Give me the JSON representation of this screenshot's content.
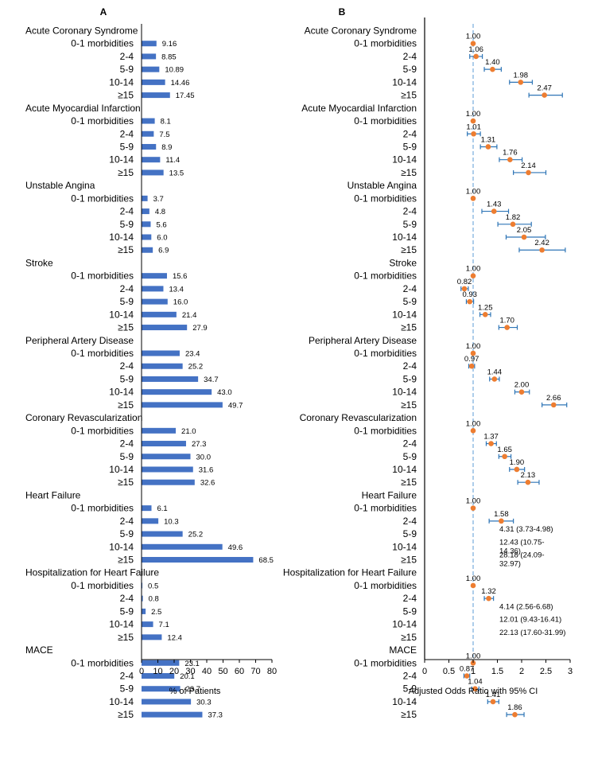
{
  "chart_data": [
    {
      "panel": "A",
      "type": "bar",
      "orientation": "horizontal",
      "xlabel": "% of Patients",
      "xlim": [
        0,
        80
      ],
      "xticks": [
        0,
        10,
        20,
        30,
        40,
        50,
        60,
        70,
        80
      ],
      "bar_color": "#4472C4",
      "groups": [
        {
          "name": "Acute Coronary Syndrome",
          "categories": [
            "0-1 morbidities",
            "2-4",
            "5-9",
            "10-14",
            "≥15"
          ],
          "values": [
            9.16,
            8.85,
            10.89,
            14.46,
            17.45
          ],
          "labels": [
            "9.16",
            "8.85",
            "10.89",
            "14.46",
            "17.45"
          ]
        },
        {
          "name": "Acute Myocardial Infarction",
          "categories": [
            "0-1 morbidities",
            "2-4",
            "5-9",
            "10-14",
            "≥15"
          ],
          "values": [
            8.1,
            7.5,
            8.9,
            11.4,
            13.5
          ],
          "labels": [
            "8.1",
            "7.5",
            "8.9",
            "11.4",
            "13.5"
          ]
        },
        {
          "name": "Unstable Angina",
          "categories": [
            "0-1 morbidities",
            "2-4",
            "5-9",
            "10-14",
            "≥15"
          ],
          "values": [
            3.7,
            4.8,
            5.6,
            6.0,
            6.9
          ],
          "labels": [
            "3.7",
            "4.8",
            "5.6",
            "6.0",
            "6.9"
          ]
        },
        {
          "name": "Stroke",
          "categories": [
            "0-1 morbidities",
            "2-4",
            "5-9",
            "10-14",
            "≥15"
          ],
          "values": [
            15.6,
            13.4,
            16.0,
            21.4,
            27.9
          ],
          "labels": [
            "15.6",
            "13.4",
            "16.0",
            "21.4",
            "27.9"
          ]
        },
        {
          "name": "Peripheral Artery Disease",
          "categories": [
            "0-1 morbidities",
            "2-4",
            "5-9",
            "10-14",
            "≥15"
          ],
          "values": [
            23.4,
            25.2,
            34.7,
            43.0,
            49.7
          ],
          "labels": [
            "23.4",
            "25.2",
            "34.7",
            "43.0",
            "49.7"
          ]
        },
        {
          "name": "Coronary Revascularization",
          "categories": [
            "0-1 morbidities",
            "2-4",
            "5-9",
            "10-14",
            "≥15"
          ],
          "values": [
            21.0,
            27.3,
            30.0,
            31.6,
            32.6
          ],
          "labels": [
            "21.0",
            "27.3",
            "30.0",
            "31.6",
            "32.6"
          ]
        },
        {
          "name": "Heart Failure",
          "categories": [
            "0-1 morbidities",
            "2-4",
            "5-9",
            "10-14",
            "≥15"
          ],
          "values": [
            6.1,
            10.3,
            25.2,
            49.6,
            68.5
          ],
          "labels": [
            "6.1",
            "10.3",
            "25.2",
            "49.6",
            "68.5"
          ]
        },
        {
          "name": "Hospitalization for Heart Failure",
          "categories": [
            "0-1 morbidities",
            "2-4",
            "5-9",
            "10-14",
            "≥15"
          ],
          "values": [
            0.5,
            0.8,
            2.5,
            7.1,
            12.4
          ],
          "labels": [
            "0.5",
            "0.8",
            "2.5",
            "7.1",
            "12.4"
          ]
        },
        {
          "name": "MACE",
          "categories": [
            "0-1 morbidities",
            "2-4",
            "5-9",
            "10-14",
            "≥15"
          ],
          "values": [
            23.1,
            20.1,
            23.7,
            30.3,
            37.3
          ],
          "labels": [
            "23.1",
            "20.1",
            "23.7",
            "30.3",
            "37.3"
          ]
        }
      ]
    },
    {
      "panel": "B",
      "type": "scatter",
      "subtype": "forest",
      "xlabel": "Adjusted Odds Ratio with 95% CI",
      "xlim": [
        0,
        3
      ],
      "xticks": [
        0,
        0.5,
        1,
        1.5,
        2,
        2.5,
        3
      ],
      "xtick_labels": [
        "0",
        "0.5",
        "1",
        "1.5",
        "2",
        "2.5",
        "3"
      ],
      "reference_line": 1,
      "point_color": "#ED7D31",
      "error_color": "#2E75B6",
      "ref_color": "#5B9BD5",
      "groups": [
        {
          "name": "Acute Coronary Syndrome",
          "points": [
            {
              "or": 1.0,
              "label": "1.00",
              "lo": 1.0,
              "hi": 1.0
            },
            {
              "or": 1.06,
              "label": "1.06",
              "lo": 0.93,
              "hi": 1.19
            },
            {
              "or": 1.4,
              "label": "1.40",
              "lo": 1.23,
              "hi": 1.58
            },
            {
              "or": 1.98,
              "label": "1.98",
              "lo": 1.75,
              "hi": 2.22
            },
            {
              "or": 2.47,
              "label": "2.47",
              "lo": 2.15,
              "hi": 2.84
            }
          ]
        },
        {
          "name": "Acute Myocardial Infarction",
          "points": [
            {
              "or": 1.0,
              "label": "1.00",
              "lo": 1.0,
              "hi": 1.0
            },
            {
              "or": 1.01,
              "label": "1.01",
              "lo": 0.88,
              "hi": 1.15
            },
            {
              "or": 1.31,
              "label": "1.31",
              "lo": 1.15,
              "hi": 1.49
            },
            {
              "or": 1.76,
              "label": "1.76",
              "lo": 1.54,
              "hi": 2.01
            },
            {
              "or": 2.14,
              "label": "2.14",
              "lo": 1.83,
              "hi": 2.5
            }
          ]
        },
        {
          "name": "Unstable Angina",
          "points": [
            {
              "or": 1.0,
              "label": "1.00",
              "lo": 1.0,
              "hi": 1.0
            },
            {
              "or": 1.43,
              "label": "1.43",
              "lo": 1.18,
              "hi": 1.73
            },
            {
              "or": 1.82,
              "label": "1.82",
              "lo": 1.51,
              "hi": 2.2
            },
            {
              "or": 2.05,
              "label": "2.05",
              "lo": 1.68,
              "hi": 2.49
            },
            {
              "or": 2.42,
              "label": "2.42",
              "lo": 1.95,
              "hi": 2.9
            }
          ]
        },
        {
          "name": "Stroke",
          "points": [
            {
              "or": 1.0,
              "label": "1.00",
              "lo": 1.0,
              "hi": 1.0
            },
            {
              "or": 0.82,
              "label": "0.82",
              "lo": 0.75,
              "hi": 0.9
            },
            {
              "or": 0.93,
              "label": "0.93",
              "lo": 0.86,
              "hi": 1.01
            },
            {
              "or": 1.25,
              "label": "1.25",
              "lo": 1.14,
              "hi": 1.36
            },
            {
              "or": 1.7,
              "label": "1.70",
              "lo": 1.53,
              "hi": 1.91
            }
          ]
        },
        {
          "name": "Peripheral Artery Disease",
          "points": [
            {
              "or": 1.0,
              "label": "1.00",
              "lo": 1.0,
              "hi": 1.0
            },
            {
              "or": 0.97,
              "label": "0.97",
              "lo": 0.91,
              "hi": 1.03
            },
            {
              "or": 1.44,
              "label": "1.44",
              "lo": 1.34,
              "hi": 1.54
            },
            {
              "or": 2.0,
              "label": "2.00",
              "lo": 1.86,
              "hi": 2.16
            },
            {
              "or": 2.66,
              "label": "2.66",
              "lo": 2.42,
              "hi": 2.93
            }
          ]
        },
        {
          "name": "Coronary Revascularization",
          "points": [
            {
              "or": 1.0,
              "label": "1.00",
              "lo": 1.0,
              "hi": 1.0
            },
            {
              "or": 1.37,
              "label": "1.37",
              "lo": 1.27,
              "hi": 1.48
            },
            {
              "or": 1.65,
              "label": "1.65",
              "lo": 1.53,
              "hi": 1.78
            },
            {
              "or": 1.9,
              "label": "1.90",
              "lo": 1.75,
              "hi": 2.06
            },
            {
              "or": 2.13,
              "label": "2.13",
              "lo": 1.92,
              "hi": 2.36
            }
          ]
        },
        {
          "name": "Heart Failure",
          "points": [
            {
              "or": 1.0,
              "label": "1.00",
              "lo": 1.0,
              "hi": 1.0
            },
            {
              "or": 1.58,
              "label": "1.58",
              "lo": 1.33,
              "hi": 1.83
            }
          ],
          "text_notes": [
            {
              "row": "5-9",
              "text": "4.31 (3.73-4.98)"
            },
            {
              "row": "10-14",
              "text": "12.43 (10.75-"
            },
            {
              "row": "10-14",
              "text": "14.36)"
            },
            {
              "row": "≥15",
              "text": "28.18 (24.09-"
            },
            {
              "row": "≥15",
              "text": "32.97)"
            }
          ]
        },
        {
          "name": "Hospitalization for Heart Failure",
          "points": [
            {
              "or": 1.0,
              "label": "1.00",
              "lo": 1.0,
              "hi": 1.0
            },
            {
              "or": 1.32,
              "label": "1.32",
              "lo": 1.23,
              "hi": 1.42
            }
          ],
          "text_notes": [
            {
              "row": "5-9",
              "text": "4.14 (2.56-6.68)"
            },
            {
              "row": "10-14",
              "text": "12.01 (9.43-16.41)"
            },
            {
              "row": "≥15",
              "text": "22.13 (17.60-31.99)"
            }
          ]
        },
        {
          "name": "MACE",
          "points": [
            {
              "or": 1.0,
              "label": "1.00",
              "lo": 1.0,
              "hi": 1.0
            },
            {
              "or": 0.87,
              "label": "0.87",
              "lo": 0.81,
              "hi": 0.93
            },
            {
              "or": 1.04,
              "label": "1.04",
              "lo": 0.97,
              "hi": 1.12
            },
            {
              "or": 1.41,
              "label": "1.41",
              "lo": 1.3,
              "hi": 1.53
            },
            {
              "or": 1.86,
              "label": "1.86",
              "lo": 1.69,
              "hi": 2.05
            }
          ]
        }
      ]
    }
  ],
  "panels": {
    "a_title": "A",
    "b_title": "B"
  },
  "row_labels": [
    "0-1 morbidities",
    "2-4",
    "5-9",
    "10-14",
    "≥15"
  ]
}
